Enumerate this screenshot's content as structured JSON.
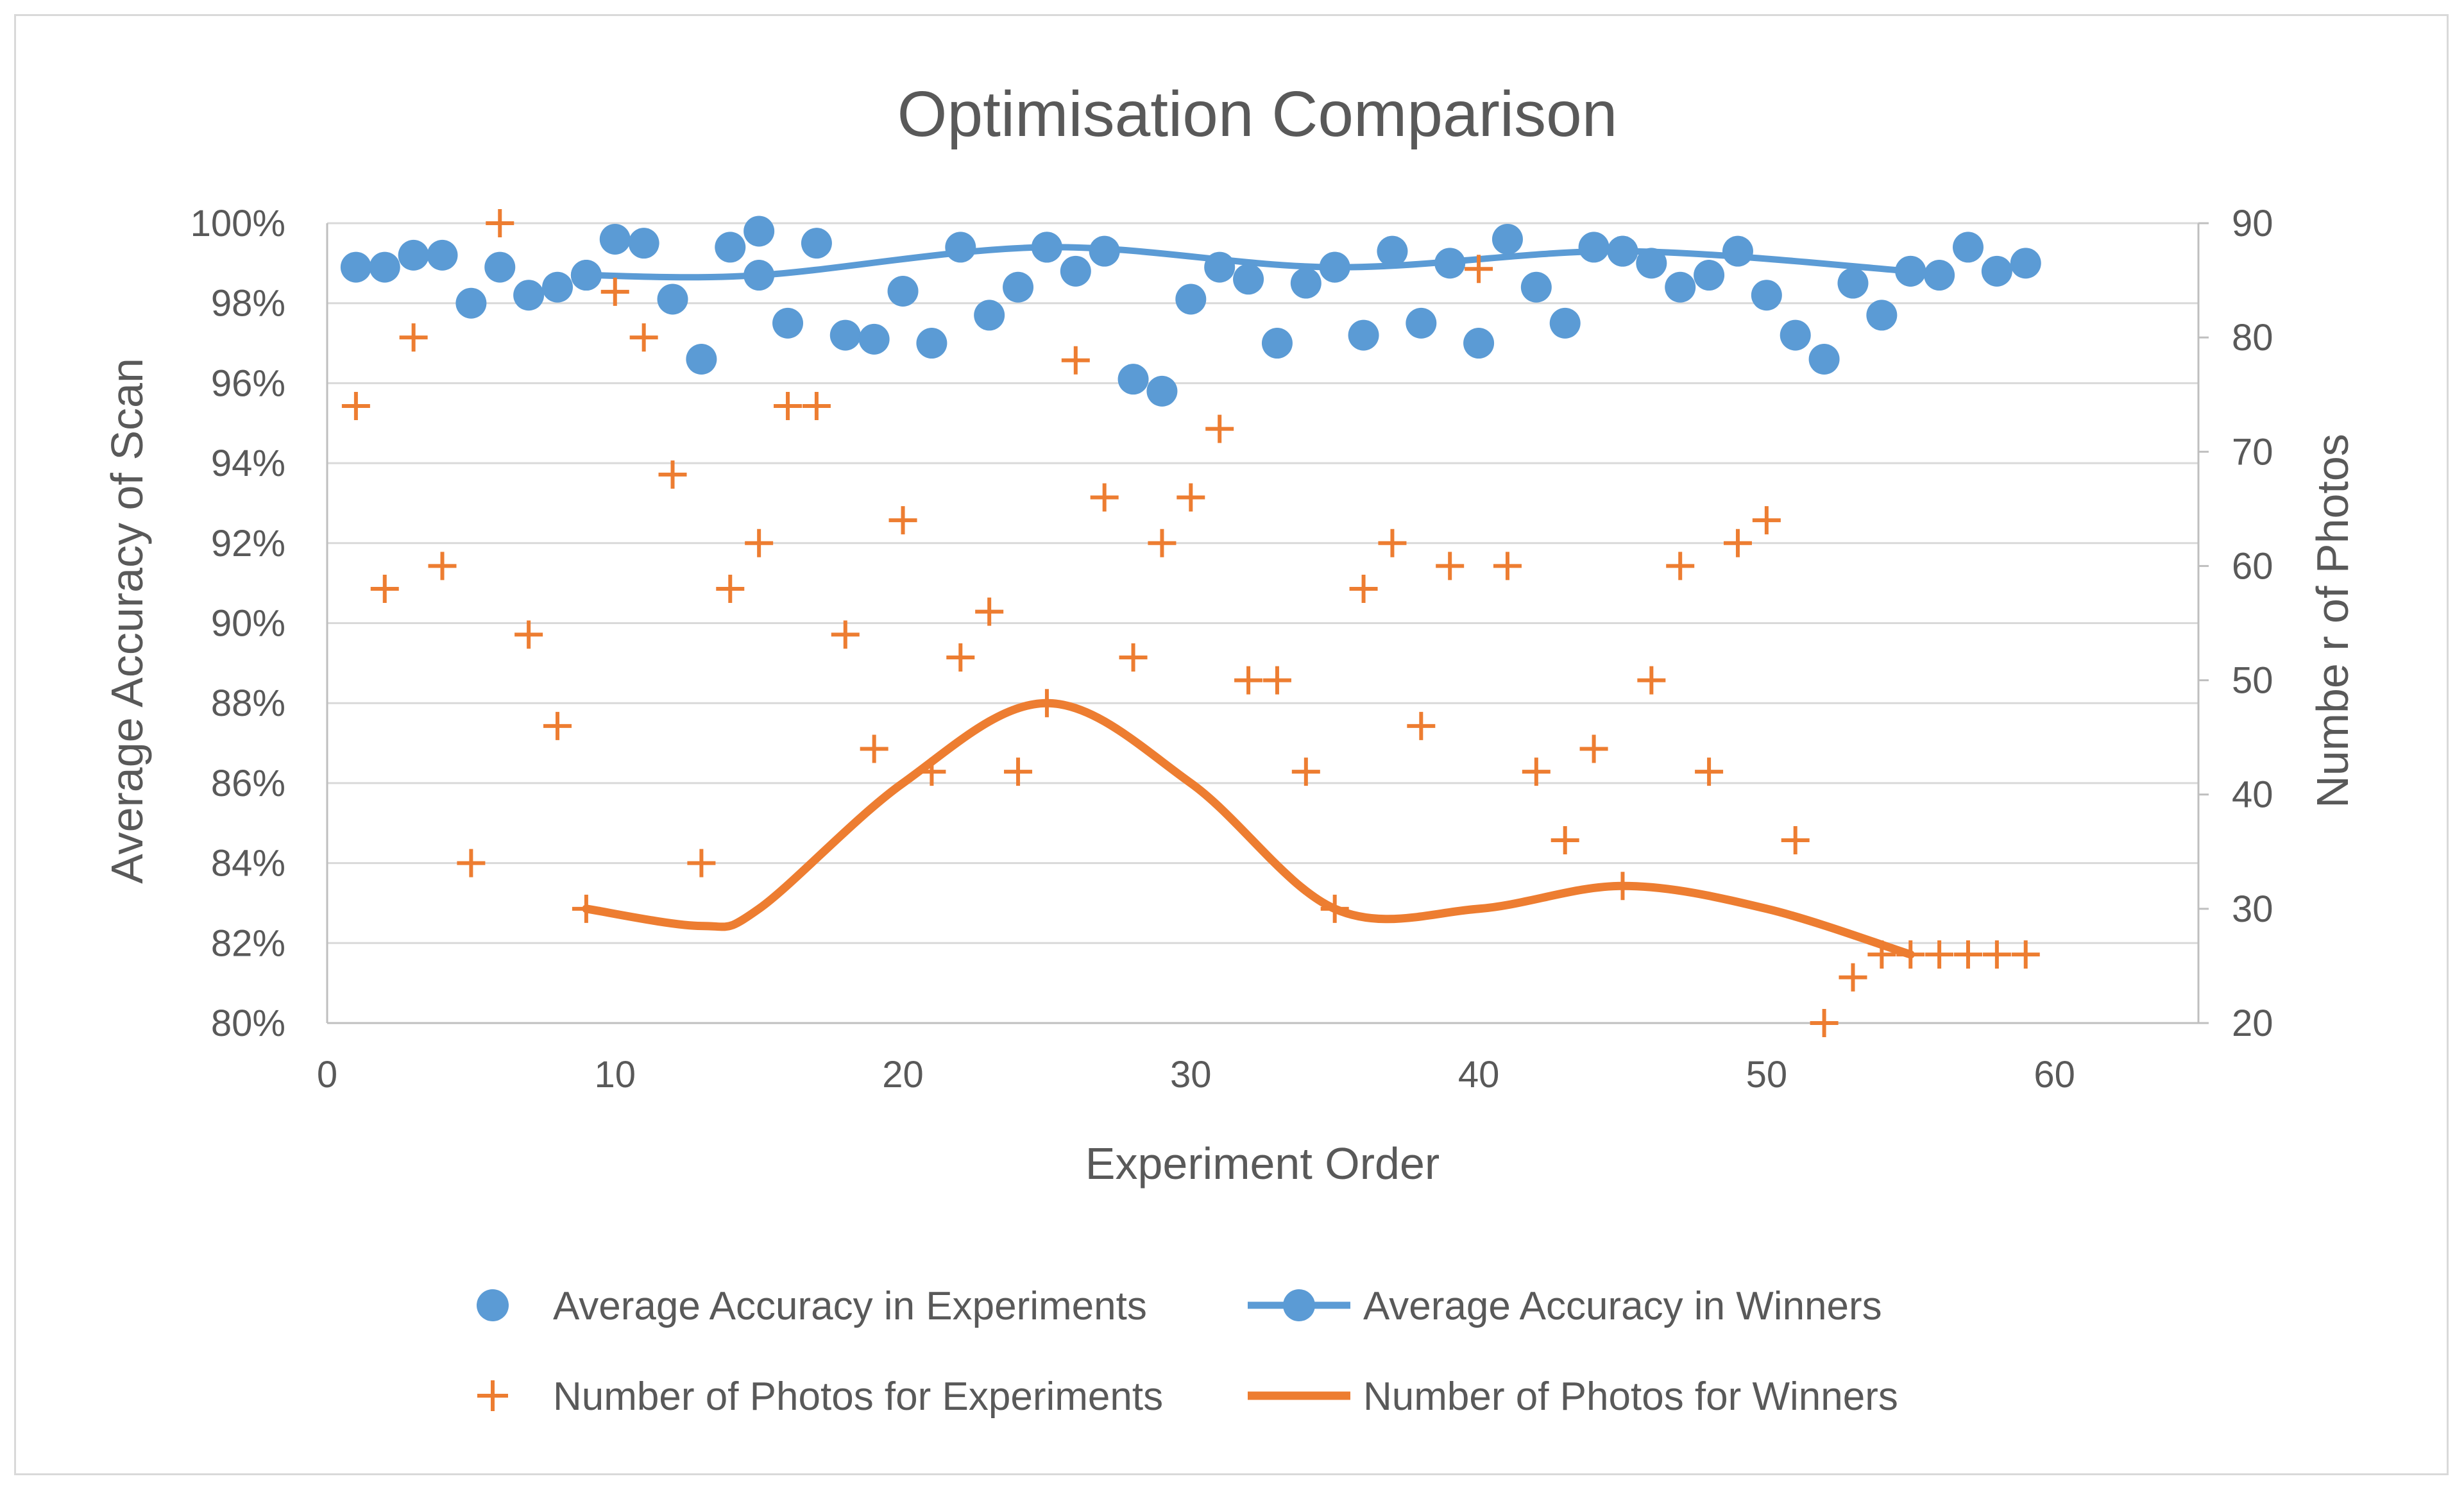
{
  "chart_data": {
    "type": "scatter",
    "title": "Optimisation Comparison",
    "xlabel": "Experiment Order",
    "ylabel_left": "Average Accuracy of Scan",
    "ylabel_right": "Numbe r of Photos",
    "xlim": [
      0,
      65
    ],
    "ylim_left": [
      0.8,
      1.0
    ],
    "ylim_right": [
      20,
      90
    ],
    "x_ticks": [
      0,
      10,
      20,
      30,
      40,
      50,
      60
    ],
    "y_left_ticks": [
      "80%",
      "82%",
      "84%",
      "86%",
      "88%",
      "90%",
      "92%",
      "94%",
      "96%",
      "98%",
      "100%"
    ],
    "y_left_tick_values": [
      0.8,
      0.82,
      0.84,
      0.86,
      0.88,
      0.9,
      0.92,
      0.94,
      0.96,
      0.98,
      1.0
    ],
    "y_right_ticks": [
      "20",
      "30",
      "40",
      "50",
      "60",
      "70",
      "80",
      "90"
    ],
    "y_right_tick_values": [
      20,
      30,
      40,
      50,
      60,
      70,
      80,
      90
    ],
    "gridlines": true,
    "legend_position": "bottom",
    "colors": {
      "accuracy": "#5b9bd5",
      "photos": "#ed7d31"
    },
    "series": [
      {
        "name": "Average Accuracy in Experiments",
        "kind": "scatter-circle",
        "axis": "left",
        "x": [
          1,
          2,
          3,
          4,
          5,
          6,
          7,
          8,
          9,
          10,
          11,
          12,
          13,
          14,
          15,
          16,
          17,
          18,
          19,
          20,
          21,
          22,
          23,
          24,
          25,
          26,
          27,
          28,
          29,
          30,
          31,
          32,
          33,
          34,
          35,
          36,
          37,
          38,
          39,
          40,
          41,
          42,
          43,
          44,
          45,
          46,
          47,
          48,
          49,
          50,
          51,
          52,
          53,
          54,
          55,
          56,
          57,
          58,
          59
        ],
        "y": [
          0.989,
          0.989,
          0.992,
          0.992,
          0.98,
          0.989,
          0.982,
          0.984,
          0.987,
          0.996,
          0.995,
          0.981,
          0.966,
          0.994,
          0.998,
          0.975,
          0.995,
          0.972,
          0.971,
          0.983,
          0.97,
          0.994,
          0.977,
          0.984,
          0.994,
          0.988,
          0.993,
          0.961,
          0.958,
          0.981,
          0.989,
          0.986,
          0.97,
          0.985,
          0.989,
          0.972,
          0.993,
          0.975,
          0.99,
          0.97,
          0.996,
          0.984,
          0.975,
          0.994,
          0.993,
          0.99,
          0.984,
          0.987,
          0.993,
          0.982,
          0.972,
          0.966,
          0.985,
          0.977,
          0.988,
          0.987,
          0.994,
          0.988,
          0.99
        ]
      },
      {
        "name": "Average Accuracy in Winners",
        "kind": "smooth-line-markers",
        "axis": "left",
        "x": [
          9,
          15,
          25,
          35,
          45,
          55
        ],
        "y": [
          0.987,
          0.987,
          0.994,
          0.989,
          0.993,
          0.988
        ]
      },
      {
        "name": "Number of Photos for Experiments",
        "kind": "scatter-plus",
        "axis": "right",
        "x": [
          1,
          2,
          3,
          4,
          5,
          6,
          7,
          8,
          9,
          10,
          11,
          12,
          13,
          14,
          15,
          16,
          17,
          18,
          19,
          20,
          21,
          22,
          23,
          24,
          25,
          26,
          27,
          28,
          29,
          30,
          31,
          32,
          33,
          34,
          35,
          36,
          37,
          38,
          39,
          40,
          41,
          42,
          43,
          44,
          45,
          46,
          47,
          48,
          49,
          50,
          51,
          52,
          53,
          54,
          55,
          56,
          57,
          58,
          59
        ],
        "y": [
          74,
          58,
          80,
          60,
          34,
          90,
          54,
          46,
          30,
          84,
          80,
          68,
          34,
          58,
          62,
          74,
          74,
          54,
          44,
          64,
          42,
          52,
          56,
          42,
          48,
          78,
          66,
          52,
          62,
          66,
          72,
          50,
          50,
          42,
          30,
          58,
          62,
          46,
          60,
          86,
          60,
          42,
          36,
          44,
          32,
          50,
          60,
          42,
          62,
          64,
          36,
          20,
          24,
          26,
          26,
          26,
          26,
          26,
          26
        ]
      },
      {
        "name": "Number of Photos for Winners",
        "kind": "smooth-line",
        "axis": "right",
        "x": [
          9,
          13,
          15,
          20,
          25,
          30,
          35,
          40,
          45,
          50,
          55
        ],
        "y": [
          30,
          28.5,
          30,
          41,
          48,
          41,
          30,
          30,
          32,
          30,
          26
        ]
      }
    ]
  }
}
